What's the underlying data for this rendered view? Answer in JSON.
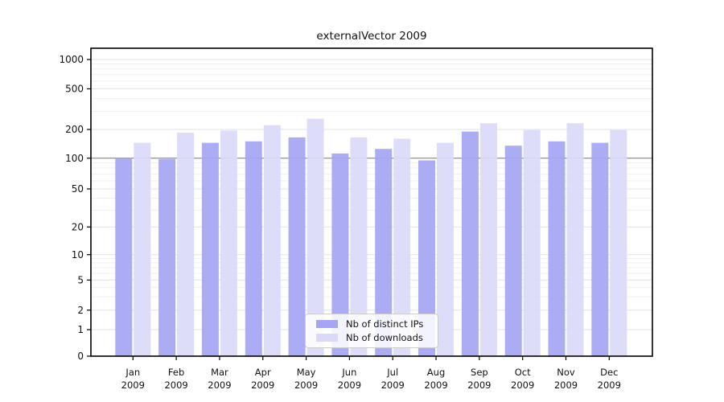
{
  "title": "externalVector 2009",
  "legend": {
    "items": [
      {
        "label": "Nb of distinct IPs"
      },
      {
        "label": "Nb of downloads"
      }
    ]
  },
  "chart_data": {
    "type": "bar",
    "title": "externalVector 2009",
    "categories": [
      "Jan 2009",
      "Feb 2009",
      "Mar 2009",
      "Apr 2009",
      "May 2009",
      "Jun 2009",
      "Jul 2009",
      "Aug 2009",
      "Sep 2009",
      "Oct 2009",
      "Nov 2009",
      "Dec 2009"
    ],
    "series": [
      {
        "name": "Nb of distinct IPs",
        "color": "#a5a5f3",
        "values": [
          100,
          98,
          145,
          150,
          165,
          112,
          125,
          95,
          190,
          135,
          150,
          145
        ]
      },
      {
        "name": "Nb of downloads",
        "color": "#dadaf8",
        "values": [
          145,
          185,
          195,
          220,
          255,
          165,
          160,
          145,
          230,
          197,
          230,
          197
        ]
      }
    ],
    "xlabel": "",
    "ylabel": "",
    "yscale": "symlog",
    "y_ticks": [
      0,
      1,
      2,
      5,
      10,
      20,
      50,
      100,
      200,
      500,
      1000
    ],
    "y_minor_gridlines": [
      3,
      4,
      6,
      7,
      8,
      9,
      30,
      40,
      60,
      70,
      80,
      90,
      300,
      400,
      600,
      700,
      800,
      900
    ],
    "ylim": [
      0,
      1300
    ],
    "grid": "horizontal major+minor",
    "reference_line_y": 100,
    "legend_position": "lower center",
    "colors": {
      "bar_dark": "#a5a5f3",
      "bar_light": "#dadaf8",
      "grid_major": "#e2e2e2",
      "grid_minor": "#efefef",
      "reference_line": "#8c8c8c",
      "axis": "#000000"
    }
  }
}
